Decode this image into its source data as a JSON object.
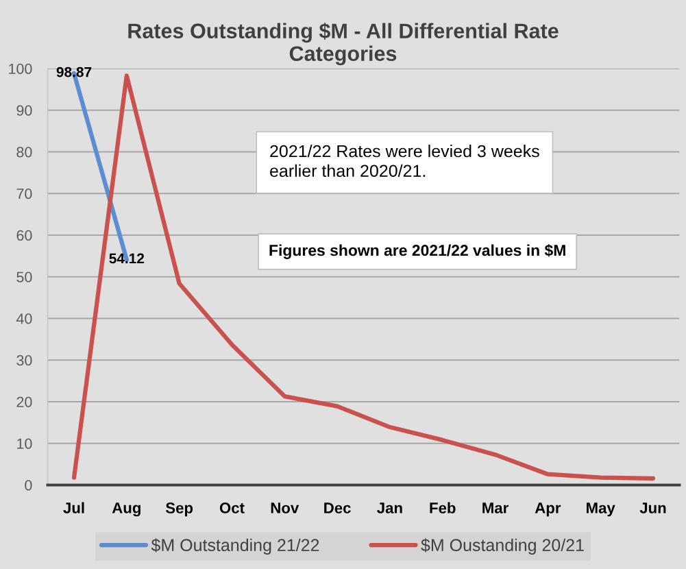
{
  "chart_data": {
    "type": "line",
    "title": "Rates Outstanding $M - All Differential Rate Categories",
    "categories": [
      "Jul",
      "Aug",
      "Sep",
      "Oct",
      "Nov",
      "Dec",
      "Jan",
      "Feb",
      "Mar",
      "Apr",
      "May",
      "Jun"
    ],
    "series": [
      {
        "name": "$M Outstanding 21/22",
        "color": "#5b8ed1",
        "values": [
          98.87,
          54.12,
          null,
          null,
          null,
          null,
          null,
          null,
          null,
          null,
          null,
          null
        ],
        "value_labels": [
          "98.87",
          "54.12",
          null,
          null,
          null,
          null,
          null,
          null,
          null,
          null,
          null,
          null
        ]
      },
      {
        "name": "$M Oustanding 20/21",
        "color": "#c9524f",
        "values": [
          1.8,
          98.3,
          48.4,
          33.7,
          21.3,
          18.9,
          13.9,
          10.8,
          7.3,
          2.6,
          1.8,
          1.6
        ]
      }
    ],
    "ylim": [
      0,
      100
    ],
    "yticks": [
      0,
      10,
      20,
      30,
      40,
      50,
      60,
      70,
      80,
      90,
      100
    ],
    "grid": "y",
    "legend": "bottom",
    "marker": "none",
    "line_style": "solid",
    "annotations": [
      "2021/22 Rates were levied 3 weeks earlier than 2020/21.",
      "Figures shown are 2021/22 values in $M"
    ]
  }
}
